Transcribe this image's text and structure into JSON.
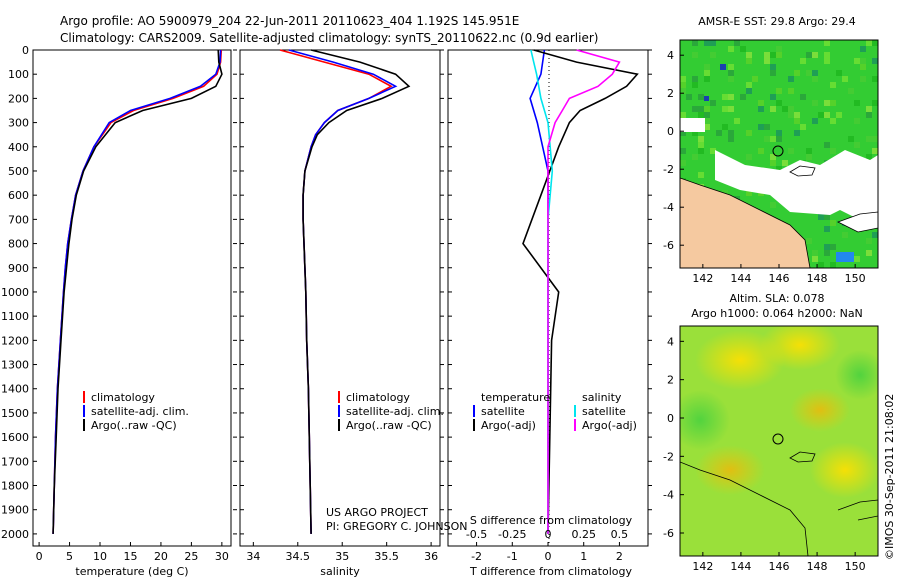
{
  "header": {
    "line1": "Argo profile: AO 5900979_204 22-Jun-2011 20110623_404 1.192S 145.951E",
    "line2": "Climatology: CARS2009. Satellite-adjusted climatology: synTS_20110622.nc (0.9d earlier)"
  },
  "colors": {
    "climatology": "#ff0000",
    "satellite": "#0000ff",
    "argo": "#000000",
    "sal_satellite": "#00e5ee",
    "sal_argo": "#ff00ff",
    "land": "#f5c9a0"
  },
  "depth_axis": {
    "ticks": [
      "0",
      "100",
      "200",
      "300",
      "400",
      "500",
      "600",
      "700",
      "800",
      "900",
      "1000",
      "1100",
      "1200",
      "1300",
      "1400",
      "1500",
      "1600",
      "1700",
      "1800",
      "1900",
      "2000"
    ],
    "ylim": [
      0,
      2050
    ]
  },
  "panels": {
    "temperature": {
      "xlabel": "temperature (deg C)",
      "xticks": [
        "0",
        "5",
        "10",
        "15",
        "20",
        "25",
        "30"
      ],
      "legend": [
        "climatology",
        "satellite-adj. clim.",
        "Argo(..raw -QC)"
      ]
    },
    "salinity": {
      "xlabel": "salinity",
      "xticks": [
        "34",
        "34.5",
        "35",
        "35.5",
        "36"
      ],
      "legend": [
        "climatology",
        "satellite-adj. clim.",
        "Argo(..raw -QC)"
      ],
      "credit1": "US ARGO PROJECT",
      "credit2": "PI: GREGORY C. JOHNSON"
    },
    "difference": {
      "s_label": "S difference from climatology",
      "t_label": "T difference from climatology",
      "s_ticks": [
        "-0.5",
        "-0.25",
        "0",
        "0.25",
        "0.5"
      ],
      "t_ticks": [
        "-2",
        "-1",
        "0",
        "1",
        "2"
      ],
      "leg_t_head": "temperature",
      "leg_t": [
        "satellite",
        "Argo(-adj)"
      ],
      "leg_s_head": "salinity",
      "leg_s": [
        "satellite",
        "Argo(-adj)"
      ]
    }
  },
  "maps": {
    "sst_title": "AMSR-E SST: 29.8  Argo: 29.4",
    "sla_title1": "Altim. SLA: 0.078",
    "sla_title2": "Argo h1000: 0.064  h2000: NaN",
    "yticks": [
      "4",
      "2",
      "0",
      "-2",
      "-4",
      "-6"
    ],
    "xticks": [
      "142",
      "144",
      "146",
      "148",
      "150"
    ]
  },
  "footer": "©IMOS 30-Sep-2011 21:08:02",
  "chart_data": [
    {
      "type": "line",
      "title": "",
      "xlabel": "temperature (deg C)",
      "ylabel": "",
      "xlim": [
        -1,
        31.5
      ],
      "ylim": [
        2050,
        0
      ],
      "series": [
        {
          "name": "climatology",
          "depth": [
            0,
            50,
            100,
            150,
            200,
            250,
            300,
            400,
            500,
            600,
            700,
            800,
            900,
            1000,
            1200,
            1400,
            1600,
            1800,
            2000
          ],
          "values": [
            29.9,
            29.8,
            29.2,
            27,
            22,
            15.5,
            11.8,
            9,
            7.2,
            6,
            5.3,
            4.7,
            4.3,
            4,
            3.5,
            3,
            2.7,
            2.5,
            2.3
          ]
        },
        {
          "name": "satellite-adj. clim.",
          "depth": [
            0,
            50,
            100,
            150,
            200,
            250,
            300,
            400,
            500,
            600,
            700,
            800,
            900,
            1000,
            1200,
            1400,
            1600,
            1800,
            2000
          ],
          "values": [
            29.8,
            29.7,
            29,
            26.5,
            21.5,
            15,
            11.5,
            9,
            7.2,
            6,
            5.3,
            4.7,
            4.3,
            4,
            3.5,
            3,
            2.7,
            2.5,
            2.3
          ]
        },
        {
          "name": "Argo(..raw -QC)",
          "depth": [
            0,
            50,
            100,
            150,
            200,
            250,
            300,
            400,
            500,
            600,
            700,
            800,
            900,
            1000,
            1200,
            1400,
            1600,
            1800,
            2000
          ],
          "values": [
            29.4,
            29.5,
            30,
            29,
            25,
            17,
            12.5,
            9.3,
            7.3,
            6.1,
            5.4,
            4.9,
            4.5,
            4.1,
            3.6,
            3.1,
            2.8,
            2.5,
            2.3
          ]
        }
      ]
    },
    {
      "type": "line",
      "title": "",
      "xlabel": "salinity",
      "ylabel": "",
      "xlim": [
        33.85,
        36.1
      ],
      "ylim": [
        2050,
        0
      ],
      "series": [
        {
          "name": "climatology",
          "depth": [
            0,
            50,
            100,
            150,
            200,
            250,
            300,
            350,
            400,
            500,
            600,
            700,
            800,
            900,
            1000,
            1200,
            1400,
            1600,
            1800,
            2000
          ],
          "values": [
            34.3,
            34.8,
            35.3,
            35.55,
            35.3,
            34.95,
            34.8,
            34.7,
            34.65,
            34.58,
            34.56,
            34.56,
            34.57,
            34.58,
            34.59,
            34.6,
            34.62,
            34.63,
            34.64,
            34.65
          ]
        },
        {
          "name": "satellite-adj. clim.",
          "depth": [
            0,
            50,
            100,
            150,
            200,
            250,
            300,
            350,
            400,
            500,
            600,
            700,
            800,
            900,
            1000,
            1200,
            1400,
            1600,
            1800,
            2000
          ],
          "values": [
            34.4,
            34.9,
            35.35,
            35.6,
            35.3,
            34.95,
            34.8,
            34.7,
            34.65,
            34.58,
            34.56,
            34.56,
            34.57,
            34.58,
            34.59,
            34.6,
            34.62,
            34.63,
            34.64,
            34.65
          ]
        },
        {
          "name": "Argo(..raw -QC)",
          "depth": [
            0,
            50,
            100,
            150,
            200,
            250,
            300,
            350,
            400,
            500,
            600,
            700,
            800,
            900,
            1000,
            1200,
            1400,
            1600,
            1800,
            2000
          ],
          "values": [
            34.65,
            35.2,
            35.6,
            35.75,
            35.45,
            35.05,
            34.85,
            34.72,
            34.66,
            34.58,
            34.56,
            34.56,
            34.57,
            34.58,
            34.59,
            34.6,
            34.62,
            34.63,
            34.64,
            34.65
          ]
        }
      ]
    },
    {
      "type": "line",
      "title": "",
      "xlabel": "T difference from climatology",
      "ylabel": "",
      "xlim": [
        -2.8,
        2.8
      ],
      "ylim": [
        2050,
        0
      ],
      "series": [
        {
          "name": "temperature satellite",
          "depth": [
            0,
            100,
            200,
            300,
            500,
            1000,
            2000
          ],
          "values": [
            -0.1,
            -0.2,
            -0.5,
            -0.3,
            0,
            0,
            0
          ]
        },
        {
          "name": "temperature Argo(-adj)",
          "depth": [
            0,
            50,
            100,
            150,
            200,
            250,
            300,
            400,
            600,
            800,
            1000,
            1200,
            2000
          ],
          "values": [
            -0.4,
            0.8,
            2.5,
            2.2,
            1.6,
            0.9,
            0.6,
            0.3,
            -0.2,
            -0.7,
            0.3,
            0.1,
            0
          ]
        },
        {
          "name": "salinity satellite",
          "depth": [
            0,
            50,
            100,
            200,
            300,
            500,
            700,
            1000,
            2000
          ],
          "values": [
            -0.12,
            -0.1,
            -0.08,
            -0.05,
            0,
            0.03,
            0,
            0,
            0
          ]
        },
        {
          "name": "salinity Argo(-adj)",
          "depth": [
            0,
            50,
            100,
            150,
            200,
            250,
            300,
            400,
            2000
          ],
          "values": [
            0.2,
            0.5,
            0.45,
            0.35,
            0.15,
            0.1,
            0.05,
            0,
            0
          ]
        }
      ]
    }
  ]
}
